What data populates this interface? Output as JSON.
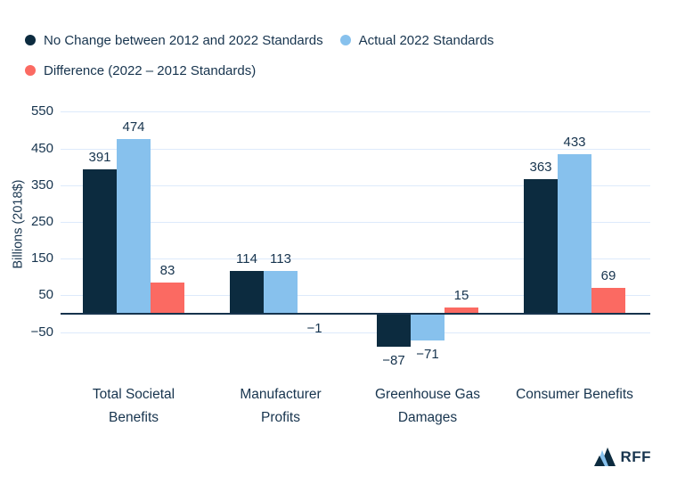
{
  "colors": {
    "dark_navy": "#0C2B3F",
    "light_blue": "#87C1ED",
    "red": "#FB6A62",
    "text": "#17344E",
    "gridline": "#DDEAFB",
    "zero_line": "#16334D",
    "background": "#FFFFFF"
  },
  "chart_data": {
    "type": "bar",
    "title": "",
    "xlabel": "",
    "ylabel": "Billions (2018$)",
    "categories": [
      "Total Societal Benefits",
      "Manufacturer Profits",
      "Greenhouse Gas Damages",
      "Consumer Benefits"
    ],
    "category_lines": [
      [
        "Total Societal",
        "Benefits"
      ],
      [
        "Manufacturer",
        "Profits"
      ],
      [
        "Greenhouse Gas",
        "Damages"
      ],
      [
        "Consumer Benefits"
      ]
    ],
    "series": [
      {
        "name": "No Change between 2012 and 2022 Standards",
        "color": "#0C2B3F",
        "values": [
          391,
          114,
          -87,
          363
        ]
      },
      {
        "name": "Actual 2022 Standards",
        "color": "#87C1ED",
        "values": [
          474,
          113,
          -71,
          433
        ]
      },
      {
        "name": "Difference (2022 – 2012 Standards)",
        "color": "#FB6A62",
        "values": [
          83,
          -1,
          15,
          69
        ]
      }
    ],
    "yticks": [
      550,
      450,
      350,
      250,
      150,
      50,
      -50
    ],
    "ylim": [
      -110,
      570
    ],
    "grid": true,
    "legend_position": "top-left",
    "value_labels": true
  },
  "footer": {
    "logo_text": "RFF"
  }
}
